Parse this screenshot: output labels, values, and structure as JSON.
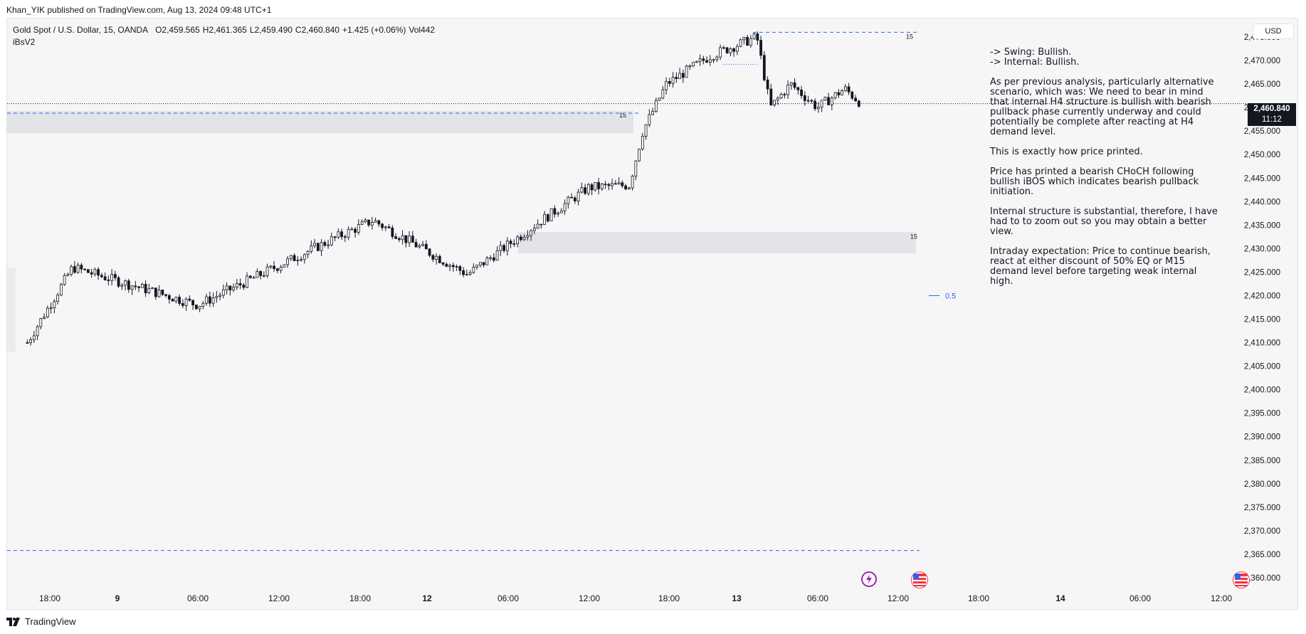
{
  "header": {
    "publisher": "Khan_YIK published on TradingView.com, Aug 13, 2024 09:48 UTC+1"
  },
  "legend": {
    "symbol": "Gold Spot / U.S. Dollar, 15, OANDA",
    "open": "O2,459.565",
    "high": "H2,461.365",
    "low": "L2,459.490",
    "close": "C2,460.840",
    "change": "+1.425 (+0.06%)",
    "volume": "Vol442",
    "indicator": "iBsV2"
  },
  "currency_button": "USD",
  "current_price": {
    "value": "2,460.840",
    "countdown": "11:12"
  },
  "notes": {
    "lines": [
      "-> Swing: Bullish.",
      "-> Internal: Bullish.",
      "As per previous analysis, particularly alternative scenario, which was: We need to bear in mind that internal H4 structure is bullish with bearish pullback phase currently underway and could potentially be complete after reacting at H4 demand level.",
      "This is exactly how price printed.",
      "Price has printed a bearish CHoCH following bullish iBOS which indicates bearish pullback initiation.",
      "Internal structure is substantial, therefore, I have had to to zoom out so you may obtain a better view.",
      "Intraday expectation: Price to continue bearish, react at either discount of 50% EQ or M15 demand level before targeting weak internal high."
    ]
  },
  "brand": "TradingView",
  "chart_data": {
    "type": "candlestick",
    "title": "Gold Spot / U.S. Dollar, 15, OANDA",
    "y_ticks": [
      "2,475.000",
      "2,470.000",
      "2,465.000",
      "2,460.000",
      "2,455.000",
      "2,450.000",
      "2,445.000",
      "2,440.000",
      "2,435.000",
      "2,430.000",
      "2,425.000",
      "2,420.000",
      "2,415.000",
      "2,410.000",
      "2,405.000",
      "2,400.000",
      "2,395.000",
      "2,390.000",
      "2,385.000",
      "2,380.000",
      "2,375.000",
      "2,370.000",
      "2,365.000",
      "2,360.000"
    ],
    "x_ticks": [
      "18:00",
      "9",
      "06:00",
      "12:00",
      "18:00",
      "12",
      "06:00",
      "12:00",
      "18:00",
      "13",
      "06:00",
      "12:00",
      "18:00",
      "14",
      "06:00",
      "12:00"
    ],
    "ylim": [
      2358,
      2476.5
    ],
    "last_price": 2460.84,
    "zones": [
      {
        "label": "15",
        "from": 2454.5,
        "to": 2459.3
      },
      {
        "label": "15",
        "from": 2429.0,
        "to": 2433.5
      }
    ],
    "lines": [
      {
        "label": "15",
        "value": 2476.0,
        "style": "dashed"
      },
      {
        "label": "0.5",
        "value": 2420.0,
        "style": "solid"
      },
      {
        "value": 2365.8,
        "style": "dashed"
      },
      {
        "value": 2458.8,
        "style": "dashed"
      }
    ],
    "key_points": [
      {
        "time": "8 16:00",
        "price": 2410.0
      },
      {
        "time": "8 20:00",
        "price": 2426.0
      },
      {
        "time": "9 06:00",
        "price": 2418.0
      },
      {
        "time": "9 16:00",
        "price": 2432.0
      },
      {
        "time": "9 19:00",
        "price": 2436.0
      },
      {
        "time": "12 03:00",
        "price": 2424.5
      },
      {
        "time": "12 08:00",
        "price": 2435.0
      },
      {
        "time": "12 12:00",
        "price": 2443.0
      },
      {
        "time": "12 15:00",
        "price": 2443.5
      },
      {
        "time": "12 16:00",
        "price": 2455.0
      },
      {
        "time": "12 17:45",
        "price": 2465.0
      },
      {
        "time": "12 21:00",
        "price": 2471.0
      },
      {
        "time": "13 01:30",
        "price": 2475.0
      },
      {
        "time": "13 02:30",
        "price": 2460.0
      },
      {
        "time": "13 04:00",
        "price": 2465.0
      },
      {
        "time": "13 06:00",
        "price": 2460.0
      },
      {
        "time": "13 08:00",
        "price": 2464.0
      },
      {
        "time": "13 09:15",
        "price": 2460.84
      }
    ]
  }
}
